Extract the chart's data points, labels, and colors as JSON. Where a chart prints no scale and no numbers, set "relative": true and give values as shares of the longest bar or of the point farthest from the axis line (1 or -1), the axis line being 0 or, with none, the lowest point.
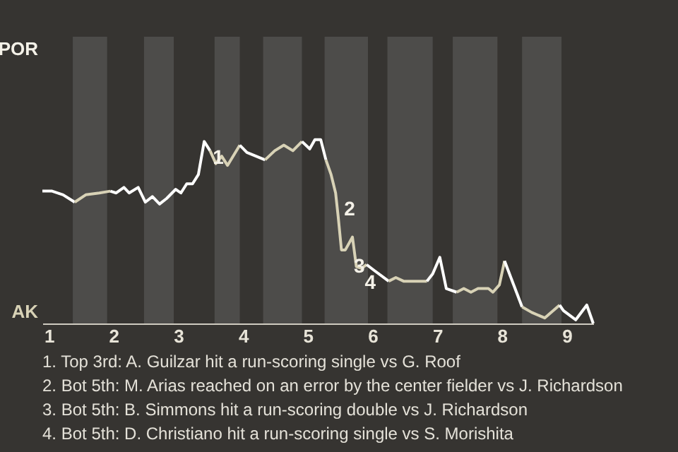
{
  "chart_data": {
    "type": "line",
    "relative": true,
    "series": [
      {
        "color": "#ffffff",
        "x": [
          0.9,
          1.05,
          1.22,
          1.4
        ],
        "values": [
          0.72,
          0.72,
          0.7,
          0.66
        ]
      },
      {
        "color": "#d8d2b6",
        "x": [
          1.4,
          1.57,
          1.78,
          1.95
        ],
        "values": [
          0.66,
          0.7,
          0.71,
          0.72
        ]
      },
      {
        "color": "#ffffff",
        "x": [
          1.95,
          2.04,
          2.16,
          2.24,
          2.38,
          2.49,
          2.6,
          2.71,
          2.82,
          2.96,
          3.04,
          3.13,
          3.22,
          3.31,
          3.4,
          3.49
        ],
        "values": [
          0.72,
          0.71,
          0.74,
          0.71,
          0.74,
          0.66,
          0.69,
          0.65,
          0.68,
          0.73,
          0.71,
          0.76,
          0.76,
          0.81,
          0.99,
          0.94
        ]
      },
      {
        "color": "#d8d2b6",
        "x": [
          3.49,
          3.58,
          3.67,
          3.76,
          3.95
        ],
        "values": [
          0.94,
          0.87,
          0.91,
          0.86,
          0.97
        ]
      },
      {
        "color": "#ffffff",
        "x": [
          3.95,
          4.06,
          4.34
        ],
        "values": [
          0.97,
          0.93,
          0.89
        ]
      },
      {
        "color": "#d8d2b6",
        "x": [
          4.34,
          4.49,
          4.63,
          4.77,
          4.91
        ],
        "values": [
          0.89,
          0.94,
          0.97,
          0.94,
          0.99
        ]
      },
      {
        "color": "#ffffff",
        "x": [
          4.91,
          5.03,
          5.11,
          5.2,
          5.28
        ],
        "values": [
          0.99,
          0.95,
          1,
          1,
          0.89
        ]
      },
      {
        "color": "#d8d2b6",
        "x": [
          5.28,
          5.36,
          5.43,
          5.47,
          5.52,
          5.58,
          5.69,
          5.75,
          5.83,
          5.91
        ],
        "values": [
          0.89,
          0.81,
          0.71,
          0.58,
          0.4,
          0.4,
          0.47,
          0.31,
          0.3,
          0.32
        ]
      },
      {
        "color": "#ffffff",
        "x": [
          5.91,
          6.02,
          6.25
        ],
        "values": [
          0.32,
          0.29,
          0.23
        ]
      },
      {
        "color": "#d8d2b6",
        "x": [
          6.25,
          6.36,
          6.48,
          6.84
        ],
        "values": [
          0.23,
          0.25,
          0.23,
          0.23
        ]
      },
      {
        "color": "#ffffff",
        "x": [
          6.84,
          6.93,
          7.04,
          7.14,
          7.3
        ],
        "values": [
          0.23,
          0.27,
          0.36,
          0.19,
          0.17
        ]
      },
      {
        "color": "#d8d2b6",
        "x": [
          7.3,
          7.41,
          7.52,
          7.63,
          7.79,
          7.86,
          7.96,
          8.04
        ],
        "values": [
          0.17,
          0.19,
          0.17,
          0.19,
          0.19,
          0.17,
          0.21,
          0.34
        ]
      },
      {
        "color": "#ffffff",
        "x": [
          8.04,
          8.31
        ],
        "values": [
          0.34,
          0.09
        ]
      },
      {
        "color": "#d8d2b6",
        "x": [
          8.31,
          8.46,
          8.66,
          8.89
        ],
        "values": [
          0.09,
          0.06,
          0.03,
          0.1
        ]
      },
      {
        "color": "#ffffff",
        "x": [
          8.89,
          8.95,
          9.14,
          9.31,
          9.41
        ],
        "values": [
          0.1,
          0.07,
          0.02,
          0.1,
          0
        ]
      }
    ],
    "xlim": [
      0.9,
      9.41
    ],
    "xticks": [
      1,
      2,
      3,
      4,
      5,
      6,
      7,
      8,
      9
    ],
    "bands": [
      {
        "axis": "x",
        "from": 1.37,
        "to": 1.9,
        "color": "#4d4c4a"
      },
      {
        "axis": "x",
        "from": 2.47,
        "to": 2.93,
        "color": "#4d4c4a"
      },
      {
        "axis": "x",
        "from": 3.56,
        "to": 3.95,
        "color": "#4d4c4a"
      },
      {
        "axis": "x",
        "from": 4.31,
        "to": 4.91,
        "color": "#4d4c4a"
      },
      {
        "axis": "x",
        "from": 5.26,
        "to": 5.93,
        "color": "#4d4c4a"
      },
      {
        "axis": "x",
        "from": 6.23,
        "to": 6.93,
        "color": "#4d4c4a"
      },
      {
        "axis": "x",
        "from": 7.24,
        "to": 7.93,
        "color": "#4d4c4a"
      },
      {
        "axis": "x",
        "from": 8.31,
        "to": 8.92,
        "color": "#4d4c4a"
      }
    ],
    "annotations": [
      "POR",
      "AK",
      {
        "text": "1",
        "x": 3.4,
        "y": 0.99
      },
      {
        "text": "2",
        "x": 5.43,
        "y": 0.71
      },
      {
        "text": "3",
        "x": 5.58,
        "y": 0.4
      },
      {
        "text": "4",
        "x": 5.75,
        "y": 0.31
      },
      "1. Top 3rd: A. Guilzar hit a run-scoring single vs G. Roof",
      "2. Bot 5th: M. Arias reached on an error by the center fielder vs J. Richardson",
      "3. Bot 5th: B. Simmons hit a run-scoring double vs J. Richardson",
      "4. Bot 5th: D. Christiano hit a run-scoring single vs S. Morishita"
    ],
    "marker": "none",
    "line_style": "solid"
  }
}
